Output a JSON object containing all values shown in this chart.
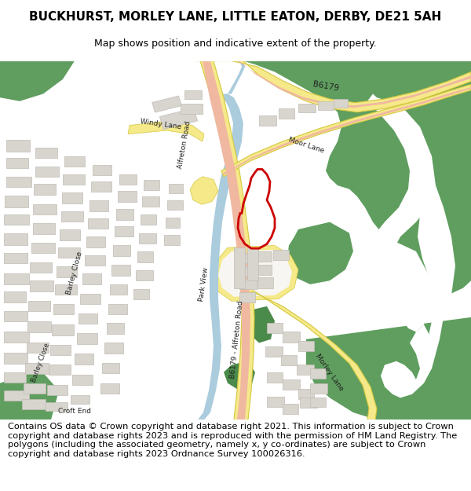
{
  "title_line1": "BUCKHURST, MORLEY LANE, LITTLE EATON, DERBY, DE21 5AH",
  "title_line2": "Map shows position and indicative extent of the property.",
  "footer_text": "Contains OS data © Crown copyright and database right 2021. This information is subject to Crown copyright and database rights 2023 and is reproduced with the permission of HM Land Registry. The polygons (including the associated geometry, namely x, y co-ordinates) are subject to Crown copyright and database rights 2023 Ordnance Survey 100026316.",
  "map_bg": "#f7f6f2",
  "green_color": "#5f9e5f",
  "road_yellow_fill": "#f5e989",
  "road_yellow_edge": "#d4c840",
  "road_pink_fill": "#f0b8a0",
  "road_pink_edge": "#d49080",
  "building_color": "#d8d5ce",
  "building_outline": "#c0bcb5",
  "water_color": "#aaccdd",
  "red_boundary": "#cc0000",
  "white_color": "#ffffff",
  "title_fontsize": 11,
  "footer_fontsize": 8.2,
  "green_small": "#4a8a4a"
}
